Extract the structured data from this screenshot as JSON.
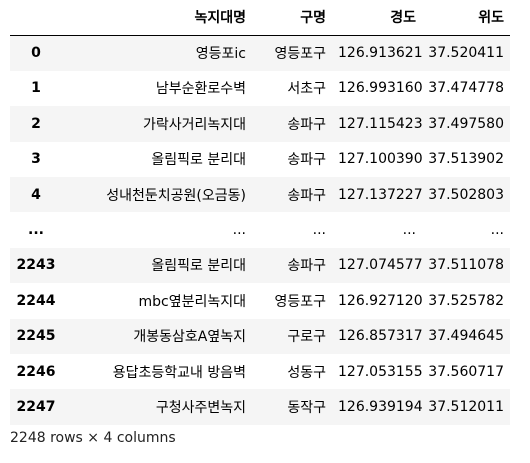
{
  "table": {
    "columns": [
      "",
      "녹지대명",
      "구명",
      "경도",
      "위도"
    ],
    "rows": [
      {
        "index": "0",
        "name": "영등포ic",
        "gu": "영등포구",
        "lon": "126.913621",
        "lat": "37.520411"
      },
      {
        "index": "1",
        "name": "남부순환로수벽",
        "gu": "서초구",
        "lon": "126.993160",
        "lat": "37.474778"
      },
      {
        "index": "2",
        "name": "가락사거리녹지대",
        "gu": "송파구",
        "lon": "127.115423",
        "lat": "37.497580"
      },
      {
        "index": "3",
        "name": "올림픽로 분리대",
        "gu": "송파구",
        "lon": "127.100390",
        "lat": "37.513902"
      },
      {
        "index": "4",
        "name": "성내천둔치공원(오금동)",
        "gu": "송파구",
        "lon": "127.137227",
        "lat": "37.502803"
      },
      {
        "index": "...",
        "name": "...",
        "gu": "...",
        "lon": "...",
        "lat": "..."
      },
      {
        "index": "2243",
        "name": "올림픽로 분리대",
        "gu": "송파구",
        "lon": "127.074577",
        "lat": "37.511078"
      },
      {
        "index": "2244",
        "name": "mbc옆분리녹지대",
        "gu": "영등포구",
        "lon": "126.927120",
        "lat": "37.525782"
      },
      {
        "index": "2245",
        "name": "개봉동삼호A옆녹지",
        "gu": "구로구",
        "lon": "126.857317",
        "lat": "37.494645"
      },
      {
        "index": "2246",
        "name": "용답초등학교내 방음벽",
        "gu": "성동구",
        "lon": "127.053155",
        "lat": "37.560717"
      },
      {
        "index": "2247",
        "name": "구청사주변녹지",
        "gu": "동작구",
        "lon": "126.939194",
        "lat": "37.512011"
      }
    ]
  },
  "footer": {
    "shape_text": "2248 rows × 4 columns"
  },
  "colors": {
    "stripe": "#f5f5f5",
    "background": "#ffffff",
    "text": "#000000"
  }
}
